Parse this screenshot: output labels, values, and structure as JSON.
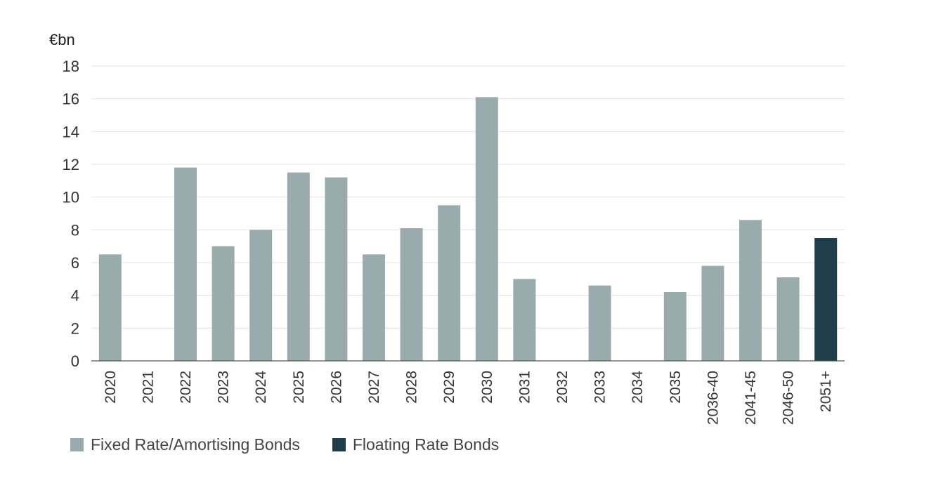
{
  "chart_data": {
    "type": "bar",
    "ylabel": "€bn",
    "ylim": [
      0,
      18
    ],
    "yticks": [
      0,
      2,
      4,
      6,
      8,
      10,
      12,
      14,
      16,
      18
    ],
    "grid": true,
    "legend_position": "bottom-left",
    "categories": [
      "2020",
      "2021",
      "2022",
      "2023",
      "2024",
      "2025",
      "2026",
      "2027",
      "2028",
      "2029",
      "2030",
      "2031",
      "2032",
      "2033",
      "2034",
      "2035",
      "2036-40",
      "2041-45",
      "2046-50",
      "2051+"
    ],
    "series": [
      {
        "name": "Fixed Rate/Amortising Bonds",
        "color": "#9aabad",
        "values": [
          6.5,
          0,
          11.8,
          7.0,
          8.0,
          11.5,
          11.2,
          6.5,
          8.1,
          9.5,
          16.1,
          5.0,
          0,
          4.6,
          0,
          4.2,
          5.8,
          8.6,
          5.1,
          0
        ]
      },
      {
        "name": "Floating Rate Bonds",
        "color": "#1f3e4c",
        "values": [
          0,
          0,
          0,
          0,
          0,
          0,
          0,
          0,
          0,
          0,
          0,
          0,
          0,
          0,
          0,
          0,
          0,
          0,
          0,
          7.5
        ]
      }
    ]
  }
}
